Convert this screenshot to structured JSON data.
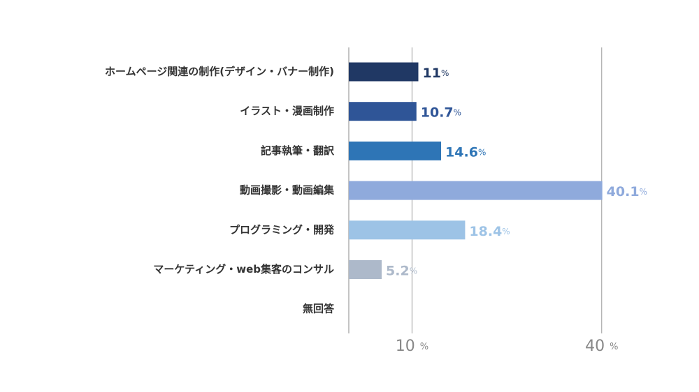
{
  "chart_data": {
    "type": "bar",
    "orientation": "horizontal",
    "categories": [
      "ホームページ関連の制作(デザイン・バナー制作)",
      "イラスト・漫画制作",
      "記事執筆・翻訳",
      "動画撮影・動画編集",
      "プログラミング・開発",
      "マーケティング・web集客のコンサル",
      "無回答"
    ],
    "values": [
      11,
      10.7,
      14.6,
      40.1,
      18.4,
      5.2,
      null
    ],
    "value_labels": [
      "11%",
      "10.7%",
      "14.6%",
      "40.1%",
      "18.4%",
      "5.2%",
      null
    ],
    "colors": [
      "#203864",
      "#2f5597",
      "#2e75b6",
      "#8faadc",
      "#9dc3e6",
      "#adb9ca",
      "#adb9ca"
    ],
    "label_colors": [
      "#203864",
      "#2f5597",
      "#2e75b6",
      "#8faadc",
      "#9dc3e6",
      "#adb9ca",
      "#adb9ca"
    ],
    "xlim": [
      0,
      45
    ],
    "xticks": [
      {
        "value": 10,
        "label": "10 %"
      },
      {
        "value": 40,
        "label": "40 %"
      }
    ],
    "grid": true
  }
}
